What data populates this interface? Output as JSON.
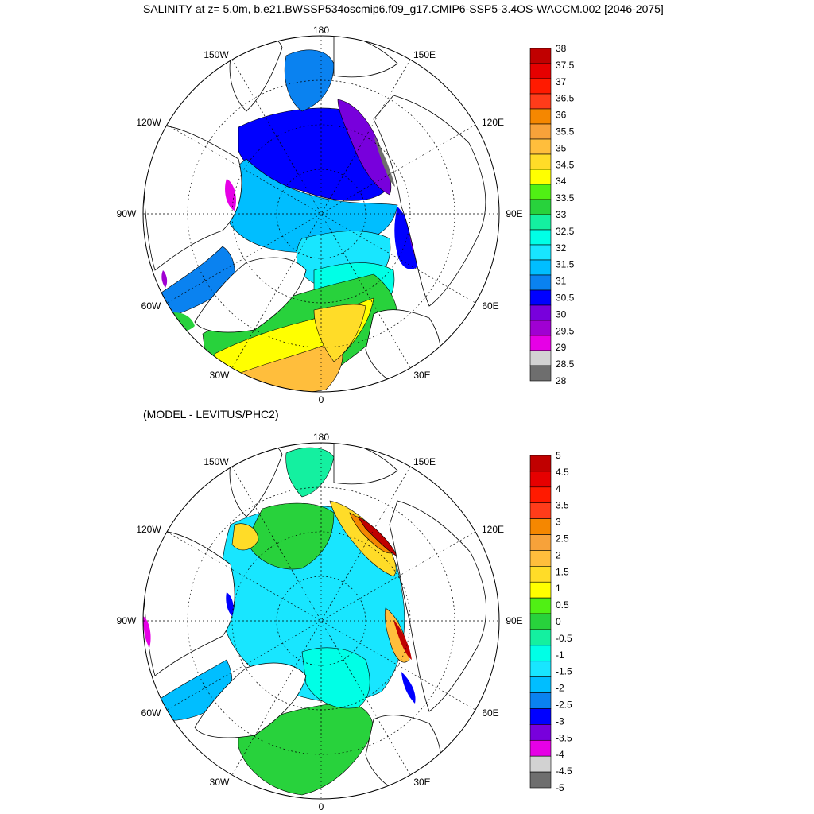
{
  "panel1": {
    "title": "SALINITY at z=   5.0m, b.e21.BWSSP534oscmip6.f09_g17.CMIP6-SSP5-3.4OS-WACCM.002 [2046-2075]",
    "lon_labels": [
      "180",
      "150E",
      "120E",
      "90E",
      "60E",
      "30E",
      "0",
      "30W",
      "60W",
      "90W",
      "120W",
      "150W"
    ],
    "colorbar": {
      "labels": [
        "38",
        "37.5",
        "37",
        "36.5",
        "36",
        "35.5",
        "35",
        "34.5",
        "34",
        "33.5",
        "33",
        "32.5",
        "32",
        "31.5",
        "31",
        "30.5",
        "30",
        "29.5",
        "29",
        "28.5",
        "28"
      ],
      "colors": [
        "#C00000",
        "#E60000",
        "#FF1A00",
        "#FF3C1A",
        "#F58700",
        "#F7A23A",
        "#FFBE3C",
        "#FFDC28",
        "#FFFF00",
        "#50F014",
        "#28D23C",
        "#14F0A0",
        "#00FFE6",
        "#18E6FF",
        "#00BEFF",
        "#0A82F0",
        "#0000FF",
        "#7800DC",
        "#A000D2",
        "#E600E6",
        "#D2D2D2",
        "#6E6E6E"
      ]
    }
  },
  "panel2": {
    "title": "(MODEL - LEVITUS/PHC2)",
    "lon_labels": [
      "180",
      "150E",
      "120E",
      "90E",
      "60E",
      "30E",
      "0",
      "30W",
      "60W",
      "90W",
      "120W",
      "150W"
    ],
    "colorbar": {
      "labels": [
        "5",
        "4.5",
        "4",
        "3.5",
        "3",
        "2.5",
        "2",
        "1.5",
        "1",
        "0.5",
        "0",
        "-0.5",
        "-1",
        "-1.5",
        "-2",
        "-2.5",
        "-3",
        "-3.5",
        "-4",
        "-4.5",
        "-5"
      ],
      "colors": [
        "#C00000",
        "#E60000",
        "#FF1A00",
        "#FF3C1A",
        "#F58700",
        "#F7A23A",
        "#FFBE3C",
        "#FFDC28",
        "#FFFF00",
        "#50F014",
        "#28D23C",
        "#14F0A0",
        "#00FFE6",
        "#18E6FF",
        "#00BEFF",
        "#0A82F0",
        "#0000FF",
        "#7800DC",
        "#E600E6",
        "#D2D2D2",
        "#6E6E6E"
      ]
    }
  }
}
